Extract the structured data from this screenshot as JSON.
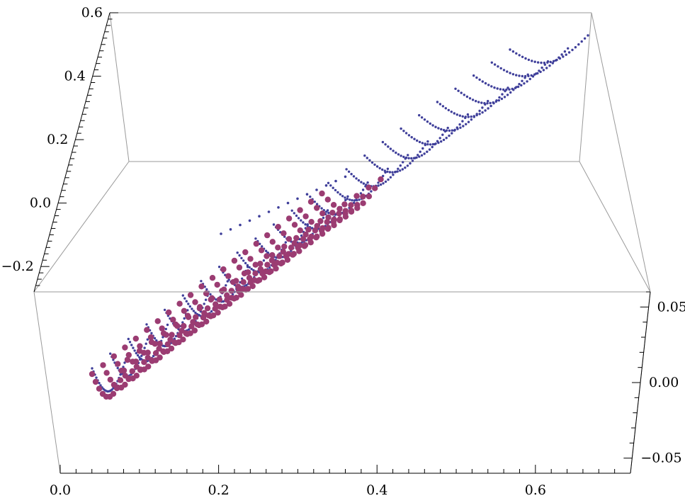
{
  "chart_data": {
    "type": "scatter",
    "title": "",
    "xlabel": "",
    "ylabel": "",
    "zlabel": "",
    "x_ticks": [
      "0.0",
      "0.2",
      "0.4",
      "0.6"
    ],
    "y_ticks": [
      "0.05",
      "0.00",
      "-0.05"
    ],
    "z_ticks": [
      "0.6",
      "0.4",
      "0.2",
      "0.0",
      "-0.2"
    ],
    "xlim": [
      0.0,
      0.72
    ],
    "ylim": [
      -0.06,
      0.06
    ],
    "zlim": [
      -0.28,
      0.6
    ],
    "colors": {
      "series_blue": "#3f3f9a",
      "series_magenta": "#9b3c72",
      "box": "#9a9a9a"
    },
    "series": [
      {
        "marker": "small-dot",
        "color": "#3f3f9a",
        "u_samples": 24,
        "v_samples": 26,
        "x_range": [
          0.03,
          0.71
        ],
        "z_range": [
          -0.27,
          0.58
        ]
      },
      {
        "marker": "large-dot",
        "color": "#9b3c72",
        "u_samples": 22,
        "v_samples": 11,
        "x_range": [
          0.03,
          0.44
        ],
        "z_range": [
          -0.27,
          -0.01
        ]
      }
    ]
  }
}
